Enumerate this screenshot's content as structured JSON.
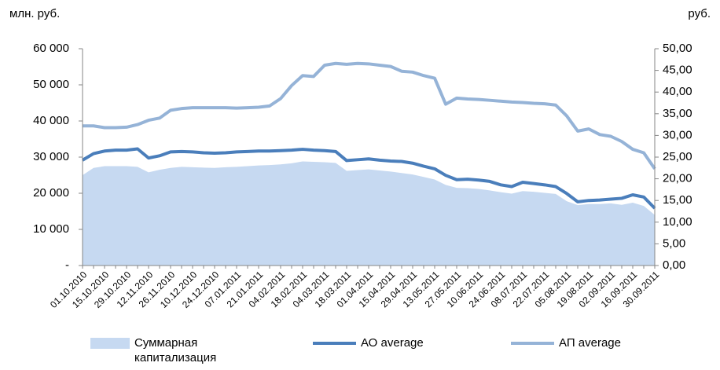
{
  "chart_data": {
    "type": "combo",
    "y_unit_label": "млн. руб.",
    "y2_unit_label": "руб.",
    "categories": [
      "01.10.2010",
      null,
      "15.10.2010",
      null,
      "29.10.2010",
      null,
      "12.11.2010",
      null,
      "26.11.2010",
      null,
      "10.12.2010",
      null,
      "24.12.2010",
      null,
      "07.01.2011",
      null,
      "21.01.2011",
      null,
      "04.02.2011",
      null,
      "18.02.2011",
      null,
      "04.03.2011",
      null,
      "18.03.2011",
      null,
      "01.04.2011",
      null,
      "15.04.2011",
      null,
      "29.04.2011",
      null,
      "13.05.2011",
      null,
      "27.05.2011",
      null,
      "10.06.2011",
      null,
      "24.06.2011",
      null,
      "08.07.2011",
      null,
      "22.07.2011",
      null,
      "05.08.2011",
      null,
      "19.08.2011",
      null,
      "02.09.2011",
      null,
      "16.09.2011",
      null,
      "30.09.2011"
    ],
    "series": [
      {
        "name": "Суммарная капитализация",
        "type": "area",
        "color": "#c6d9f1",
        "values": [
          25000,
          27000,
          27500,
          27500,
          27500,
          27300,
          25800,
          26500,
          27000,
          27300,
          27200,
          27100,
          27000,
          27200,
          27300,
          27500,
          27700,
          27800,
          28000,
          28300,
          28800,
          28700,
          28600,
          28400,
          26200,
          26400,
          26600,
          26300,
          26000,
          25600,
          25200,
          24500,
          23800,
          22300,
          21500,
          21400,
          21200,
          20800,
          20300,
          19900,
          20600,
          20400,
          20100,
          19800,
          17800,
          16700,
          17000,
          17000,
          17200,
          16800,
          17400,
          16500,
          14000
        ]
      },
      {
        "name": "АО average",
        "type": "line",
        "axis": "y2",
        "color": "#4a7ebb",
        "values": [
          24.3,
          25.8,
          26.4,
          26.6,
          26.6,
          26.9,
          24.8,
          25.3,
          26.2,
          26.3,
          26.2,
          26.0,
          25.9,
          26.0,
          26.2,
          26.3,
          26.4,
          26.4,
          26.5,
          26.6,
          26.8,
          26.6,
          26.5,
          26.3,
          24.2,
          24.4,
          24.6,
          24.3,
          24.1,
          24.0,
          23.6,
          22.9,
          22.3,
          20.8,
          19.8,
          19.9,
          19.7,
          19.4,
          18.6,
          18.2,
          19.2,
          18.9,
          18.6,
          18.2,
          16.6,
          14.7,
          15.0,
          15.1,
          15.3,
          15.5,
          16.3,
          15.8,
          13.2
        ]
      },
      {
        "name": "АП average",
        "type": "line",
        "axis": "y2",
        "color": "#95b3d7",
        "values": [
          32.2,
          32.2,
          31.8,
          31.8,
          31.9,
          32.5,
          33.5,
          34.0,
          35.8,
          36.2,
          36.4,
          36.4,
          36.4,
          36.4,
          36.3,
          36.4,
          36.5,
          36.8,
          38.5,
          41.5,
          43.8,
          43.6,
          46.2,
          46.6,
          46.4,
          46.6,
          46.5,
          46.2,
          45.9,
          44.8,
          44.6,
          43.8,
          43.2,
          37.2,
          38.6,
          38.4,
          38.3,
          38.1,
          37.9,
          37.7,
          37.6,
          37.4,
          37.3,
          37.0,
          34.5,
          31.0,
          31.5,
          30.2,
          29.8,
          28.6,
          26.8,
          26.0,
          22.3
        ]
      }
    ],
    "ylim": [
      0,
      60000
    ],
    "yticks": [
      {
        "value": 0,
        "label": "-"
      },
      {
        "value": 10000,
        "label": "10 000"
      },
      {
        "value": 20000,
        "label": "20 000"
      },
      {
        "value": 30000,
        "label": "30 000"
      },
      {
        "value": 40000,
        "label": "40 000"
      },
      {
        "value": 50000,
        "label": "50 000"
      },
      {
        "value": 60000,
        "label": "60 000"
      }
    ],
    "y2lim": [
      0,
      50
    ],
    "y2ticks": [
      {
        "value": 0,
        "label": "0,00"
      },
      {
        "value": 5,
        "label": "5,00"
      },
      {
        "value": 10,
        "label": "10,00"
      },
      {
        "value": 15,
        "label": "15,00"
      },
      {
        "value": 20,
        "label": "20,00"
      },
      {
        "value": 25,
        "label": "25,00"
      },
      {
        "value": 30,
        "label": "30,00"
      },
      {
        "value": 35,
        "label": "35,00"
      },
      {
        "value": 40,
        "label": "40,00"
      },
      {
        "value": 45,
        "label": "45,00"
      },
      {
        "value": 50,
        "label": "50,00"
      }
    ],
    "legend": "bottom"
  }
}
